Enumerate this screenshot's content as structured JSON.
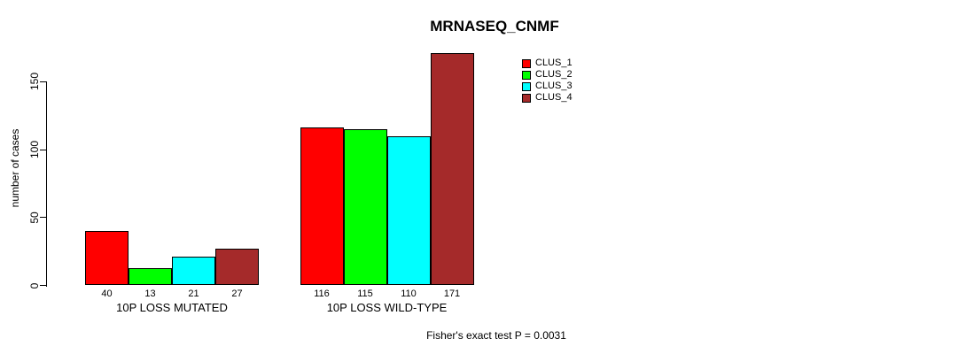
{
  "chart_data": {
    "type": "bar",
    "title": "MRNASEQ_CNMF",
    "ylabel": "number of cases",
    "xlabel": "",
    "categories": [
      "10P LOSS MUTATED",
      "10P LOSS WILD-TYPE"
    ],
    "series": [
      {
        "name": "CLUS_1",
        "color": "#FF0000",
        "values": [
          40,
          116
        ]
      },
      {
        "name": "CLUS_2",
        "color": "#00FF00",
        "values": [
          13,
          115
        ]
      },
      {
        "name": "CLUS_3",
        "color": "#00FFFF",
        "values": [
          21,
          110
        ]
      },
      {
        "name": "CLUS_4",
        "color": "#A52A2A",
        "values": [
          27,
          171
        ]
      }
    ],
    "yticks": [
      0,
      50,
      100,
      150
    ],
    "ylim": [
      0,
      172
    ],
    "grid": false,
    "legend_position": "top-right",
    "bar_value_labels_shown": true,
    "annotation": "Fisher's exact test P = 0.0031"
  },
  "page": {
    "background_color": "#FFFFFF",
    "text_color": "#000000"
  }
}
